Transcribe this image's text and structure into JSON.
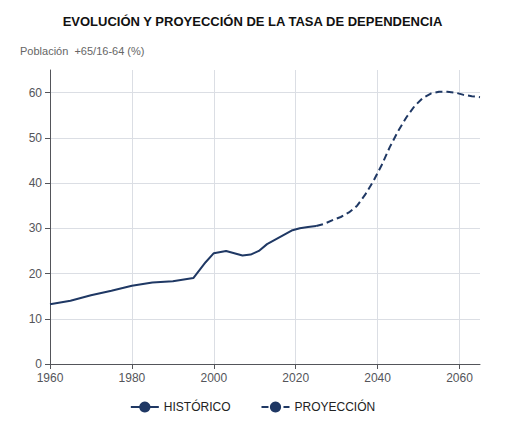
{
  "chart_data": {
    "type": "line",
    "title": "EVOLUCIÓN Y PROYECCIÓN DE LA TASA DE DEPENDENCIA",
    "ylabel": "Población  +65/16-64 (%)",
    "xlim": [
      1960,
      2065
    ],
    "ylim": [
      0,
      65
    ],
    "xticks": [
      1960,
      1980,
      2000,
      2020,
      2040,
      2060
    ],
    "yticks": [
      0,
      10,
      20,
      30,
      40,
      50,
      60
    ],
    "grid": true,
    "legend": "bottom",
    "series": [
      {
        "name": "HISTÓRICO",
        "color": "#1f3864",
        "line_style": "solid",
        "x": [
          1960,
          1965,
          1970,
          1975,
          1980,
          1985,
          1990,
          1995,
          1998,
          2000,
          2003,
          2005,
          2007,
          2009,
          2011,
          2013,
          2015,
          2017,
          2019,
          2021,
          2023,
          2025
        ],
        "values": [
          13.2,
          14.0,
          15.2,
          16.2,
          17.3,
          18.0,
          18.3,
          19.0,
          22.5,
          24.5,
          25.0,
          24.5,
          24.0,
          24.2,
          25.0,
          26.5,
          27.5,
          28.5,
          29.5,
          30.0,
          30.3,
          30.5
        ]
      },
      {
        "name": "PROYECCIÓN",
        "color": "#1f3864",
        "line_style": "dashed",
        "x": [
          2025,
          2027,
          2029,
          2031,
          2033,
          2035,
          2037,
          2039,
          2041,
          2043,
          2045,
          2047,
          2049,
          2051,
          2053,
          2055,
          2057,
          2059,
          2061,
          2063,
          2065
        ],
        "values": [
          30.5,
          31.0,
          31.8,
          32.5,
          33.5,
          35.0,
          37.5,
          40.5,
          44.0,
          48.0,
          51.5,
          54.5,
          57.0,
          58.8,
          59.8,
          60.2,
          60.2,
          60.0,
          59.5,
          59.2,
          59.0
        ]
      }
    ]
  }
}
